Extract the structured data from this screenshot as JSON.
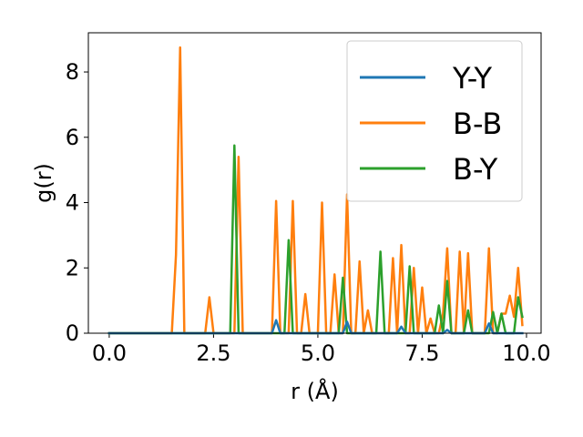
{
  "chart_data": {
    "type": "line",
    "xlabel": "r (Å)",
    "ylabel": "g(r)",
    "xlim": [
      -0.5,
      10.35
    ],
    "ylim": [
      0,
      9.2
    ],
    "xticks": [
      0.0,
      2.5,
      5.0,
      7.5,
      10.0
    ],
    "xtick_labels": [
      "0.0",
      "2.5",
      "5.0",
      "7.5",
      "10.0"
    ],
    "yticks": [
      0,
      2,
      4,
      6,
      8
    ],
    "ytick_labels": [
      "0",
      "2",
      "4",
      "6",
      "8"
    ],
    "grid": false,
    "legend_position": "top-right",
    "series": [
      {
        "name": "Y-Y",
        "color": "#1f77b4",
        "points": [
          [
            0,
            0
          ],
          [
            3.9,
            0
          ],
          [
            4.0,
            0.4
          ],
          [
            4.1,
            0
          ],
          [
            5.6,
            0
          ],
          [
            5.7,
            0.35
          ],
          [
            5.8,
            0
          ],
          [
            6.9,
            0
          ],
          [
            7.0,
            0.2
          ],
          [
            7.1,
            0
          ],
          [
            8.0,
            0
          ],
          [
            8.1,
            0.1
          ],
          [
            8.2,
            0
          ],
          [
            9.0,
            0
          ],
          [
            9.1,
            0.3
          ],
          [
            9.2,
            0
          ],
          [
            9.9,
            0
          ]
        ]
      },
      {
        "name": "B-B",
        "color": "#ff7f0e",
        "points": [
          [
            0,
            0
          ],
          [
            1.5,
            0
          ],
          [
            1.6,
            2.4
          ],
          [
            1.7,
            8.75
          ],
          [
            1.8,
            0
          ],
          [
            2.3,
            0
          ],
          [
            2.4,
            1.1
          ],
          [
            2.5,
            0
          ],
          [
            3.0,
            0
          ],
          [
            3.1,
            5.4
          ],
          [
            3.2,
            0
          ],
          [
            3.9,
            0
          ],
          [
            4.0,
            4.05
          ],
          [
            4.1,
            0
          ],
          [
            4.3,
            0
          ],
          [
            4.4,
            4.05
          ],
          [
            4.5,
            0
          ],
          [
            4.6,
            0
          ],
          [
            4.7,
            1.2
          ],
          [
            4.8,
            0
          ],
          [
            5.0,
            0
          ],
          [
            5.1,
            4.0
          ],
          [
            5.2,
            0
          ],
          [
            5.3,
            0
          ],
          [
            5.4,
            1.8
          ],
          [
            5.5,
            0
          ],
          [
            5.6,
            0
          ],
          [
            5.7,
            4.25
          ],
          [
            5.8,
            0
          ],
          [
            5.9,
            0
          ],
          [
            6.0,
            2.2
          ],
          [
            6.1,
            0
          ],
          [
            6.2,
            0.7
          ],
          [
            6.3,
            0
          ],
          [
            6.7,
            0
          ],
          [
            6.8,
            2.3
          ],
          [
            6.9,
            0
          ],
          [
            7.0,
            2.7
          ],
          [
            7.1,
            0
          ],
          [
            7.2,
            0
          ],
          [
            7.3,
            2.0
          ],
          [
            7.4,
            0
          ],
          [
            7.5,
            1.4
          ],
          [
            7.6,
            0
          ],
          [
            7.7,
            0.45
          ],
          [
            7.8,
            0
          ],
          [
            7.9,
            0
          ],
          [
            8.0,
            0.6
          ],
          [
            8.1,
            2.6
          ],
          [
            8.2,
            0
          ],
          [
            8.3,
            0
          ],
          [
            8.4,
            2.5
          ],
          [
            8.5,
            0
          ],
          [
            8.6,
            2.45
          ],
          [
            8.7,
            0
          ],
          [
            9.0,
            0
          ],
          [
            9.1,
            2.6
          ],
          [
            9.2,
            0
          ],
          [
            9.3,
            0
          ],
          [
            9.4,
            0.6
          ],
          [
            9.5,
            0.6
          ],
          [
            9.6,
            1.15
          ],
          [
            9.7,
            0.5
          ],
          [
            9.8,
            2.0
          ],
          [
            9.9,
            0.25
          ]
        ]
      },
      {
        "name": "B-Y",
        "color": "#2ca02c",
        "points": [
          [
            0,
            0
          ],
          [
            2.9,
            0
          ],
          [
            3.0,
            5.75
          ],
          [
            3.1,
            0
          ],
          [
            4.2,
            0
          ],
          [
            4.3,
            2.85
          ],
          [
            4.4,
            0
          ],
          [
            5.5,
            0
          ],
          [
            5.6,
            1.7
          ],
          [
            5.7,
            0
          ],
          [
            6.4,
            0
          ],
          [
            6.5,
            2.5
          ],
          [
            6.6,
            0
          ],
          [
            7.1,
            0
          ],
          [
            7.2,
            2.05
          ],
          [
            7.3,
            0
          ],
          [
            7.8,
            0
          ],
          [
            7.9,
            0.85
          ],
          [
            8.0,
            0
          ],
          [
            8.1,
            1.6
          ],
          [
            8.2,
            0
          ],
          [
            8.5,
            0
          ],
          [
            8.6,
            0.7
          ],
          [
            8.7,
            0
          ],
          [
            9.1,
            0
          ],
          [
            9.2,
            0.65
          ],
          [
            9.3,
            0
          ],
          [
            9.4,
            0.6
          ],
          [
            9.5,
            0
          ],
          [
            9.7,
            0
          ],
          [
            9.8,
            1.1
          ],
          [
            9.9,
            0.5
          ]
        ]
      }
    ]
  }
}
